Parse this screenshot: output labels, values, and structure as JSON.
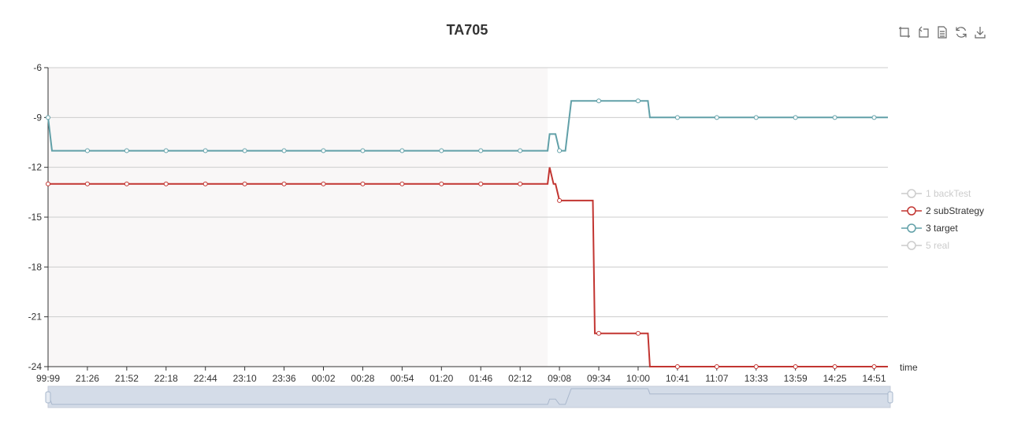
{
  "title": "TA705",
  "toolbox": [
    {
      "name": "zoom-icon"
    },
    {
      "name": "zoom-reset-icon"
    },
    {
      "name": "data-view-icon"
    },
    {
      "name": "restore-icon"
    },
    {
      "name": "save-image-icon"
    }
  ],
  "legend": [
    {
      "label": "1 backTest",
      "color": "#cccccc",
      "active": false
    },
    {
      "label": "2 subStrategy",
      "color": "#c23531",
      "active": true
    },
    {
      "label": "3 target",
      "color": "#61a0a8",
      "active": true
    },
    {
      "label": "5 real",
      "color": "#cccccc",
      "active": false
    }
  ],
  "chart_data": {
    "type": "line",
    "title": "TA705",
    "xlabel": "time",
    "ylabel": "",
    "ylim": [
      -24,
      -6
    ],
    "yticks": [
      -6,
      -9,
      -12,
      -15,
      -18,
      -21,
      -24
    ],
    "xticks": [
      "99:99",
      "21:26",
      "21:52",
      "22:18",
      "22:44",
      "23:10",
      "23:36",
      "00:02",
      "00:28",
      "00:54",
      "01:20",
      "01:46",
      "02:12",
      "09:08",
      "09:34",
      "10:00",
      "10:41",
      "11:07",
      "13:33",
      "13:59",
      "14:25",
      "14:51"
    ],
    "grid": true,
    "legend_position": "right",
    "shaded_x_range": [
      "99:99",
      "02:12"
    ],
    "series": [
      {
        "name": "3 target",
        "color": "#61a0a8",
        "points": [
          {
            "x": 0,
            "y": -9
          },
          {
            "x": 0.1,
            "y": -11
          },
          {
            "x": 1,
            "y": -11
          },
          {
            "x": 2,
            "y": -11
          },
          {
            "x": 3,
            "y": -11
          },
          {
            "x": 4,
            "y": -11
          },
          {
            "x": 5,
            "y": -11
          },
          {
            "x": 6,
            "y": -11
          },
          {
            "x": 7,
            "y": -11
          },
          {
            "x": 8,
            "y": -11
          },
          {
            "x": 9,
            "y": -11
          },
          {
            "x": 10,
            "y": -11
          },
          {
            "x": 11,
            "y": -11
          },
          {
            "x": 12,
            "y": -11
          },
          {
            "x": 12.7,
            "y": -11
          },
          {
            "x": 12.75,
            "y": -10
          },
          {
            "x": 12.9,
            "y": -10
          },
          {
            "x": 13.0,
            "y": -11
          },
          {
            "x": 13.15,
            "y": -11
          },
          {
            "x": 13.3,
            "y": -8
          },
          {
            "x": 14,
            "y": -8
          },
          {
            "x": 15,
            "y": -8
          },
          {
            "x": 15.25,
            "y": -8
          },
          {
            "x": 15.3,
            "y": -9
          },
          {
            "x": 16,
            "y": -9
          },
          {
            "x": 17,
            "y": -9
          },
          {
            "x": 18,
            "y": -9
          },
          {
            "x": 19,
            "y": -9
          },
          {
            "x": 20,
            "y": -9
          },
          {
            "x": 21,
            "y": -9
          },
          {
            "x": 21.35,
            "y": -9
          }
        ],
        "markers": [
          0,
          1,
          2,
          3,
          4,
          5,
          6,
          7,
          8,
          9,
          10,
          11,
          12,
          13,
          14,
          15,
          16,
          17,
          18,
          19,
          20,
          21
        ]
      },
      {
        "name": "2 subStrategy",
        "color": "#c23531",
        "points": [
          {
            "x": 0,
            "y": -13
          },
          {
            "x": 1,
            "y": -13
          },
          {
            "x": 2,
            "y": -13
          },
          {
            "x": 3,
            "y": -13
          },
          {
            "x": 4,
            "y": -13
          },
          {
            "x": 5,
            "y": -13
          },
          {
            "x": 6,
            "y": -13
          },
          {
            "x": 7,
            "y": -13
          },
          {
            "x": 8,
            "y": -13
          },
          {
            "x": 9,
            "y": -13
          },
          {
            "x": 10,
            "y": -13
          },
          {
            "x": 11,
            "y": -13
          },
          {
            "x": 12,
            "y": -13
          },
          {
            "x": 12.7,
            "y": -13
          },
          {
            "x": 12.75,
            "y": -12
          },
          {
            "x": 12.85,
            "y": -13
          },
          {
            "x": 12.9,
            "y": -13
          },
          {
            "x": 13.0,
            "y": -14
          },
          {
            "x": 13.85,
            "y": -14
          },
          {
            "x": 13.9,
            "y": -22
          },
          {
            "x": 14,
            "y": -22
          },
          {
            "x": 15,
            "y": -22
          },
          {
            "x": 15.25,
            "y": -22
          },
          {
            "x": 15.3,
            "y": -24
          },
          {
            "x": 16,
            "y": -24
          },
          {
            "x": 17,
            "y": -24
          },
          {
            "x": 18,
            "y": -24
          },
          {
            "x": 19,
            "y": -24
          },
          {
            "x": 20,
            "y": -24
          },
          {
            "x": 21,
            "y": -24
          },
          {
            "x": 21.35,
            "y": -24
          }
        ],
        "markers": [
          0,
          1,
          2,
          3,
          4,
          5,
          6,
          7,
          8,
          9,
          10,
          11,
          12,
          13,
          14,
          15,
          16,
          17,
          18,
          19,
          20,
          21
        ]
      }
    ]
  }
}
